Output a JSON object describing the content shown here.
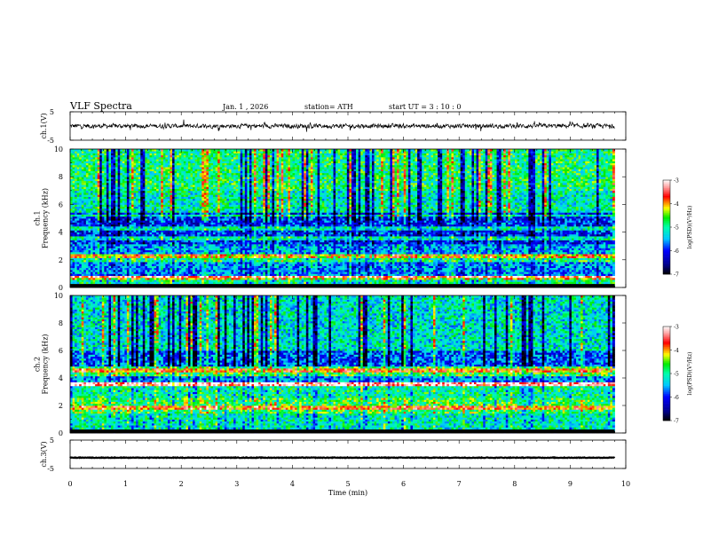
{
  "header": {
    "title": "VLF  Spectra",
    "date": "Jan.  1  , 2026",
    "station": "station= ATH",
    "start": "start  UT  =    3  : 10 : 0"
  },
  "colorbar": {
    "label": "log(PSD)(V²/Hz)",
    "ticks": [
      "-3",
      "-4",
      "-5",
      "-6",
      "-7"
    ],
    "colors": [
      "#ffffff",
      "#ff0000",
      "#ffff00",
      "#00ff00",
      "#00ffff",
      "#0000ff",
      "#000000"
    ]
  },
  "chart_data": [
    {
      "type": "line",
      "panel": "ch.1 waveform",
      "ylabel": "ch.1(V)",
      "ylim": [
        -5,
        5
      ],
      "yticks": [
        "5",
        "-5"
      ],
      "xlim": [
        0,
        10
      ],
      "data_end_min": 9.8,
      "mean_value_v": 0,
      "noise_amplitude_v": 1,
      "spike_amplitude_v": 2.5
    },
    {
      "type": "heatmap",
      "panel": "ch.1 spectrogram",
      "ylabel": "ch.1\nFrequency  (kHz)",
      "ylim": [
        0,
        10
      ],
      "yticks": [
        "10",
        "8",
        "6",
        "4",
        "2",
        "0"
      ],
      "xlim": [
        0,
        10
      ],
      "data_end_min": 9.8,
      "zlim": [
        -7,
        -3
      ],
      "zlabel": "log(PSD)(V²/Hz)",
      "spectrum_by_band": [
        {
          "freq_khz": [
            0,
            0.2
          ],
          "log_psd": -7.0
        },
        {
          "freq_khz": [
            0.2,
            0.6
          ],
          "log_psd": -5.0
        },
        {
          "freq_khz": [
            0.6,
            0.9
          ],
          "log_psd": -4.2
        },
        {
          "freq_khz": [
            0.9,
            1.9
          ],
          "log_psd": -5.6
        },
        {
          "freq_khz": [
            1.9,
            2.4
          ],
          "log_psd": -4.9
        },
        {
          "freq_khz": [
            2.4,
            3.2
          ],
          "log_psd": -5.5
        },
        {
          "freq_khz": [
            3.2,
            5.4
          ],
          "log_psd": -6.0
        },
        {
          "freq_khz": [
            5.4,
            7.0
          ],
          "log_psd": -5.1
        },
        {
          "freq_khz": [
            7.0,
            10.0
          ],
          "log_psd": -4.9
        }
      ],
      "tone_lines_khz": [
        0.8,
        2.3,
        3.6,
        4.3,
        5.2
      ]
    },
    {
      "type": "heatmap",
      "panel": "ch.2 spectrogram",
      "ylabel": "ch.2\nFrequency  (kHz)",
      "ylim": [
        0,
        10
      ],
      "yticks": [
        "10",
        "8",
        "6",
        "4",
        "2",
        "0"
      ],
      "xlim": [
        0,
        10
      ],
      "data_end_min": 9.8,
      "zlim": [
        -7,
        -3
      ],
      "zlabel": "log(PSD)(V²/Hz)",
      "spectrum_by_band": [
        {
          "freq_khz": [
            0,
            0.2
          ],
          "log_psd": -7.0
        },
        {
          "freq_khz": [
            0.2,
            1.5
          ],
          "log_psd": -5.1
        },
        {
          "freq_khz": [
            1.5,
            2.6
          ],
          "log_psd": -4.7
        },
        {
          "freq_khz": [
            2.6,
            3.4
          ],
          "log_psd": -5.0
        },
        {
          "freq_khz": [
            3.4,
            3.7
          ],
          "log_psd": -4.0
        },
        {
          "freq_khz": [
            3.7,
            4.2
          ],
          "log_psd": -5.6
        },
        {
          "freq_khz": [
            4.2,
            4.8
          ],
          "log_psd": -4.7
        },
        {
          "freq_khz": [
            4.8,
            6.0
          ],
          "log_psd": -5.8
        },
        {
          "freq_khz": [
            6.0,
            10.0
          ],
          "log_psd": -5.2
        }
      ],
      "tone_lines_khz": [
        1.9,
        3.6,
        4.6
      ]
    },
    {
      "type": "line",
      "panel": "ch.3 waveform",
      "ylabel": "ch.3(V)",
      "ylim": [
        -5,
        5
      ],
      "yticks": [
        "5",
        "-5"
      ],
      "xlim": [
        0,
        10
      ],
      "data_end_min": 9.8,
      "mean_value_v": -1.2,
      "noise_amplitude_v": 0.15,
      "xlabel": "Time  (min)",
      "xticks": [
        "0",
        "1",
        "2",
        "3",
        "4",
        "5",
        "6",
        "7",
        "8",
        "9",
        "10"
      ]
    }
  ]
}
